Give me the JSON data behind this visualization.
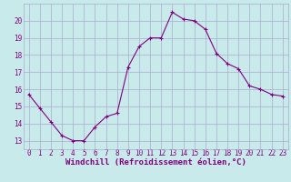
{
  "x": [
    0,
    1,
    2,
    3,
    4,
    5,
    6,
    7,
    8,
    9,
    10,
    11,
    12,
    13,
    14,
    15,
    16,
    17,
    18,
    19,
    20,
    21,
    22,
    23
  ],
  "y": [
    15.7,
    14.9,
    14.1,
    13.3,
    13.0,
    13.0,
    13.8,
    14.4,
    14.6,
    17.3,
    18.5,
    19.0,
    19.0,
    20.5,
    20.1,
    20.0,
    19.5,
    18.1,
    17.5,
    17.2,
    16.2,
    16.0,
    15.7,
    15.6
  ],
  "line_color": "#800080",
  "marker": "+",
  "markersize": 3,
  "linewidth": 0.8,
  "xlabel": "Windchill (Refroidissement éolien,°C)",
  "xlabel_fontsize": 6.5,
  "xlabel_color": "#800080",
  "bg_color": "#c8eaea",
  "grid_color": "#aaaacc",
  "tick_color": "#800080",
  "ylim": [
    12.5,
    21.0
  ],
  "yticks": [
    13,
    14,
    15,
    16,
    17,
    18,
    19,
    20
  ],
  "xlim": [
    -0.5,
    23.5
  ],
  "xticks": [
    0,
    1,
    2,
    3,
    4,
    5,
    6,
    7,
    8,
    9,
    10,
    11,
    12,
    13,
    14,
    15,
    16,
    17,
    18,
    19,
    20,
    21,
    22,
    23
  ],
  "tick_fontsize": 5.5
}
